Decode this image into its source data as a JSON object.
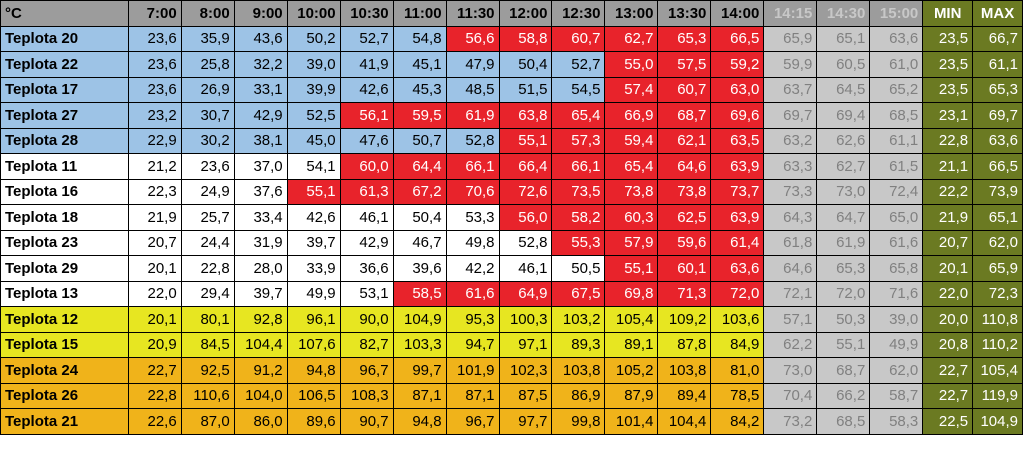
{
  "table": {
    "corner": "°C",
    "columns": [
      "7:00",
      "8:00",
      "9:00",
      "10:00",
      "10:30",
      "11:00",
      "11:30",
      "12:00",
      "12:30",
      "13:00",
      "13:30",
      "14:00",
      "14:15",
      "14:30",
      "15:00"
    ],
    "future_columns": [
      "14:15",
      "14:30",
      "15:00"
    ],
    "min_label": "MIN",
    "max_label": "MAX",
    "colors": {
      "blue": "#9dc3e6",
      "white": "#ffffff",
      "red": "#e8232b",
      "yellow": "#e7e621",
      "orange": "#f0b31a",
      "gray": "#c8c8c8",
      "olive": "#6b7a22"
    },
    "rows": [
      {
        "label": "Teplota 20",
        "values": [
          "23,6",
          "35,9",
          "43,6",
          "50,2",
          "52,7",
          "54,8",
          "56,6",
          "58,8",
          "60,7",
          "62,7",
          "65,3",
          "66,5",
          "65,9",
          "65,1",
          "63,6"
        ],
        "colors": [
          "b",
          "b",
          "b",
          "b",
          "b",
          "b",
          "r",
          "r",
          "r",
          "r",
          "r",
          "r",
          "g",
          "g",
          "g"
        ],
        "min": "23,5",
        "max": "66,7"
      },
      {
        "label": "Teplota 22",
        "values": [
          "23,6",
          "25,8",
          "32,2",
          "39,0",
          "41,9",
          "45,1",
          "47,9",
          "50,4",
          "52,7",
          "55,0",
          "57,5",
          "59,2",
          "59,9",
          "60,5",
          "61,0"
        ],
        "colors": [
          "b",
          "b",
          "b",
          "b",
          "b",
          "b",
          "b",
          "b",
          "b",
          "r",
          "r",
          "r",
          "g",
          "g",
          "g"
        ],
        "min": "23,5",
        "max": "61,1"
      },
      {
        "label": "Teplota 17",
        "values": [
          "23,6",
          "26,9",
          "33,1",
          "39,9",
          "42,6",
          "45,3",
          "48,5",
          "51,5",
          "54,5",
          "57,4",
          "60,7",
          "63,0",
          "63,7",
          "64,5",
          "65,2"
        ],
        "colors": [
          "b",
          "b",
          "b",
          "b",
          "b",
          "b",
          "b",
          "b",
          "b",
          "r",
          "r",
          "r",
          "g",
          "g",
          "g"
        ],
        "min": "23,5",
        "max": "65,3"
      },
      {
        "label": "Teplota 27",
        "values": [
          "23,2",
          "30,7",
          "42,9",
          "52,5",
          "56,1",
          "59,5",
          "61,9",
          "63,8",
          "65,4",
          "66,9",
          "68,7",
          "69,6",
          "69,7",
          "69,4",
          "68,5"
        ],
        "colors": [
          "b",
          "b",
          "b",
          "b",
          "r",
          "r",
          "r",
          "r",
          "r",
          "r",
          "r",
          "r",
          "g",
          "g",
          "g"
        ],
        "min": "23,1",
        "max": "69,7"
      },
      {
        "label": "Teplota 28",
        "values": [
          "22,9",
          "30,2",
          "38,1",
          "45,0",
          "47,6",
          "50,7",
          "52,8",
          "55,1",
          "57,3",
          "59,4",
          "62,1",
          "63,5",
          "63,2",
          "62,6",
          "61,1"
        ],
        "colors": [
          "b",
          "b",
          "b",
          "b",
          "b",
          "b",
          "b",
          "r",
          "r",
          "r",
          "r",
          "r",
          "g",
          "g",
          "g"
        ],
        "min": "22,8",
        "max": "63,6"
      },
      {
        "label": "Teplota 11",
        "values": [
          "21,2",
          "23,6",
          "37,0",
          "54,1",
          "60,0",
          "64,4",
          "66,1",
          "66,4",
          "66,1",
          "65,4",
          "64,6",
          "63,9",
          "63,3",
          "62,7",
          "61,5"
        ],
        "colors": [
          "w",
          "w",
          "w",
          "w",
          "r",
          "r",
          "r",
          "r",
          "r",
          "r",
          "r",
          "r",
          "g",
          "g",
          "g"
        ],
        "min": "21,1",
        "max": "66,5"
      },
      {
        "label": "Teplota 16",
        "values": [
          "22,3",
          "24,9",
          "37,6",
          "55,1",
          "61,3",
          "67,2",
          "70,6",
          "72,6",
          "73,5",
          "73,8",
          "73,8",
          "73,7",
          "73,3",
          "73,0",
          "72,4"
        ],
        "colors": [
          "w",
          "w",
          "w",
          "r",
          "r",
          "r",
          "r",
          "r",
          "r",
          "r",
          "r",
          "r",
          "g",
          "g",
          "g"
        ],
        "min": "22,2",
        "max": "73,9"
      },
      {
        "label": "Teplota 18",
        "values": [
          "21,9",
          "25,7",
          "33,4",
          "42,6",
          "46,1",
          "50,4",
          "53,3",
          "56,0",
          "58,2",
          "60,3",
          "62,5",
          "63,9",
          "64,3",
          "64,7",
          "65,0"
        ],
        "colors": [
          "w",
          "w",
          "w",
          "w",
          "w",
          "w",
          "w",
          "r",
          "r",
          "r",
          "r",
          "r",
          "g",
          "g",
          "g"
        ],
        "min": "21,9",
        "max": "65,1"
      },
      {
        "label": "Teplota 23",
        "values": [
          "20,7",
          "24,4",
          "31,9",
          "39,7",
          "42,9",
          "46,7",
          "49,8",
          "52,8",
          "55,3",
          "57,9",
          "59,6",
          "61,4",
          "61,8",
          "61,9",
          "61,6"
        ],
        "colors": [
          "w",
          "w",
          "w",
          "w",
          "w",
          "w",
          "w",
          "w",
          "r",
          "r",
          "r",
          "r",
          "g",
          "g",
          "g"
        ],
        "min": "20,7",
        "max": "62,0"
      },
      {
        "label": "Teplota 29",
        "values": [
          "20,1",
          "22,8",
          "28,0",
          "33,9",
          "36,6",
          "39,6",
          "42,2",
          "46,1",
          "50,5",
          "55,1",
          "60,1",
          "63,6",
          "64,6",
          "65,3",
          "65,8"
        ],
        "colors": [
          "w",
          "w",
          "w",
          "w",
          "w",
          "w",
          "w",
          "w",
          "w",
          "r",
          "r",
          "r",
          "g",
          "g",
          "g"
        ],
        "min": "20,1",
        "max": "65,9"
      },
      {
        "label": "Teplota 13",
        "values": [
          "22,0",
          "29,4",
          "39,7",
          "49,9",
          "53,1",
          "58,5",
          "61,6",
          "64,9",
          "67,5",
          "69,8",
          "71,3",
          "72,0",
          "72,1",
          "72,0",
          "71,6"
        ],
        "colors": [
          "w",
          "w",
          "w",
          "w",
          "w",
          "r",
          "r",
          "r",
          "r",
          "r",
          "r",
          "r",
          "g",
          "g",
          "g"
        ],
        "min": "22,0",
        "max": "72,3"
      },
      {
        "label": "Teplota 12",
        "values": [
          "20,1",
          "80,1",
          "92,8",
          "96,1",
          "90,0",
          "104,9",
          "95,3",
          "100,3",
          "103,2",
          "105,4",
          "109,2",
          "103,6",
          "57,1",
          "50,3",
          "39,0"
        ],
        "colors": [
          "y",
          "y",
          "y",
          "y",
          "y",
          "y",
          "y",
          "y",
          "y",
          "y",
          "y",
          "y",
          "g",
          "g",
          "g"
        ],
        "min": "20,0",
        "max": "110,8"
      },
      {
        "label": "Teplota 15",
        "values": [
          "20,9",
          "84,5",
          "104,4",
          "107,6",
          "82,7",
          "103,3",
          "94,7",
          "97,1",
          "89,3",
          "89,1",
          "87,8",
          "84,9",
          "62,2",
          "55,1",
          "49,9"
        ],
        "colors": [
          "y",
          "y",
          "y",
          "y",
          "y",
          "y",
          "y",
          "y",
          "y",
          "y",
          "y",
          "y",
          "g",
          "g",
          "g"
        ],
        "min": "20,8",
        "max": "110,2"
      },
      {
        "label": "Teplota 24",
        "values": [
          "22,7",
          "92,5",
          "91,2",
          "94,8",
          "96,7",
          "99,7",
          "101,9",
          "102,3",
          "103,8",
          "105,2",
          "103,8",
          "81,0",
          "73,0",
          "68,7",
          "62,0"
        ],
        "colors": [
          "o",
          "o",
          "o",
          "o",
          "o",
          "o",
          "o",
          "o",
          "o",
          "o",
          "o",
          "o",
          "g",
          "g",
          "g"
        ],
        "min": "22,7",
        "max": "105,4"
      },
      {
        "label": "Teplota 26",
        "values": [
          "22,8",
          "110,6",
          "104,0",
          "106,5",
          "108,3",
          "87,1",
          "87,1",
          "87,5",
          "86,9",
          "87,9",
          "89,4",
          "78,5",
          "70,4",
          "66,2",
          "58,7"
        ],
        "colors": [
          "o",
          "o",
          "o",
          "o",
          "o",
          "o",
          "o",
          "o",
          "o",
          "o",
          "o",
          "o",
          "g",
          "g",
          "g"
        ],
        "min": "22,7",
        "max": "119,9"
      },
      {
        "label": "Teplota 21",
        "values": [
          "22,6",
          "87,0",
          "86,0",
          "89,6",
          "90,7",
          "94,8",
          "96,7",
          "97,7",
          "99,8",
          "101,4",
          "104,4",
          "84,2",
          "73,2",
          "68,5",
          "58,3"
        ],
        "colors": [
          "o",
          "o",
          "o",
          "o",
          "o",
          "o",
          "o",
          "o",
          "o",
          "o",
          "o",
          "o",
          "g",
          "g",
          "g"
        ],
        "min": "22,5",
        "max": "104,9"
      }
    ]
  }
}
